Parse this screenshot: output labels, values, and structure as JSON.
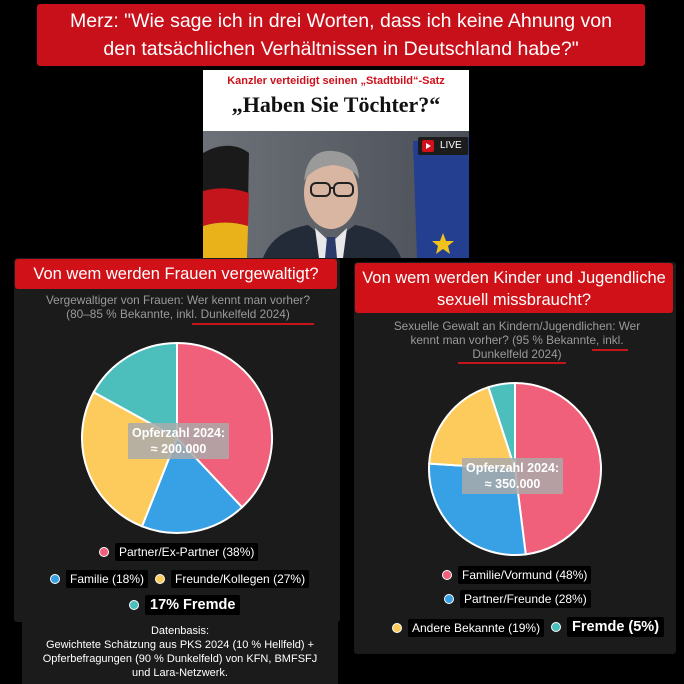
{
  "headline": {
    "line1": "Merz: \"Wie sage ich in drei Worten, dass ich keine Ahnung von",
    "line2": "den tatsächlichen Verhältnissen in Deutschland habe?\""
  },
  "news": {
    "kicker": "Kanzler verteidigt seinen „Stadtbild“-Satz",
    "title": "„Haben Sie Töchter?“",
    "live_label": "LIVE"
  },
  "left_panel": {
    "title": "Von wem werden Frauen vergewaltigt?",
    "subtitle_line1": "Vergewaltiger von Frauen: Wer kennt man vorher?",
    "subtitle_line2": "(80–85 % Bekannte, inkl. Dunkelfeld 2024)",
    "center_label_line1": "Opferzahl 2024:",
    "center_label_line2": "≈ 200.000"
  },
  "right_panel": {
    "title_line1": "Von wem werden Kinder und Jugendliche",
    "title_line2": "sexuell missbraucht?",
    "subtitle_line1": "Sexuelle Gewalt an Kindern/Jugendlichen: Wer",
    "subtitle_line2": "kennt man vorher? (95 % Bekannte, inkl.",
    "subtitle_line3": "Dunkelfeld 2024)",
    "center_label_line1": "Opferzahl 2024:",
    "center_label_line2": "≈ 350.000"
  },
  "footer": {
    "line1": "Datenbasis:",
    "line2": "Gewichtete Schätzung aus PKS 2024 (10 % Hellfeld) +",
    "line3": "Opferbefragungen (90 % Dunkelfeld) von KFN, BMFSFJ",
    "line4": "und Lara-Netzwerk."
  },
  "colors": {
    "pink": "#f0607a",
    "blue": "#38a1e5",
    "yellow": "#fdcb5c",
    "teal": "#4cbfbd",
    "red": "#d01118"
  },
  "chart_data": [
    {
      "type": "pie",
      "title": "Von wem werden Frauen vergewaltigt?",
      "slices": [
        {
          "name": "Partner/Ex-Partner",
          "value": 38,
          "legend": "Partner/Ex-Partner (38%)",
          "color": "#f0607a"
        },
        {
          "name": "Familie",
          "value": 18,
          "legend": "Familie (18%)",
          "color": "#38a1e5"
        },
        {
          "name": "Freunde/Kollegen",
          "value": 27,
          "legend": "Freunde/Kollegen (27%)",
          "color": "#fdcb5c"
        },
        {
          "name": "Fremde",
          "value": 17,
          "legend": "17% Fremde",
          "color": "#4cbfbd"
        }
      ]
    },
    {
      "type": "pie",
      "title": "Von wem werden Kinder und Jugendliche sexuell missbraucht?",
      "slices": [
        {
          "name": "Familie/Vormund",
          "value": 48,
          "legend": "Familie/Vormund (48%)",
          "color": "#f0607a"
        },
        {
          "name": "Partner/Freunde",
          "value": 28,
          "legend": "Partner/Freunde (28%)",
          "color": "#38a1e5"
        },
        {
          "name": "Andere Bekannte",
          "value": 19,
          "legend": "Andere Bekannte (19%)",
          "color": "#fdcb5c"
        },
        {
          "name": "Fremde",
          "value": 5,
          "legend": "Fremde (5%)",
          "color": "#4cbfbd"
        }
      ]
    }
  ]
}
